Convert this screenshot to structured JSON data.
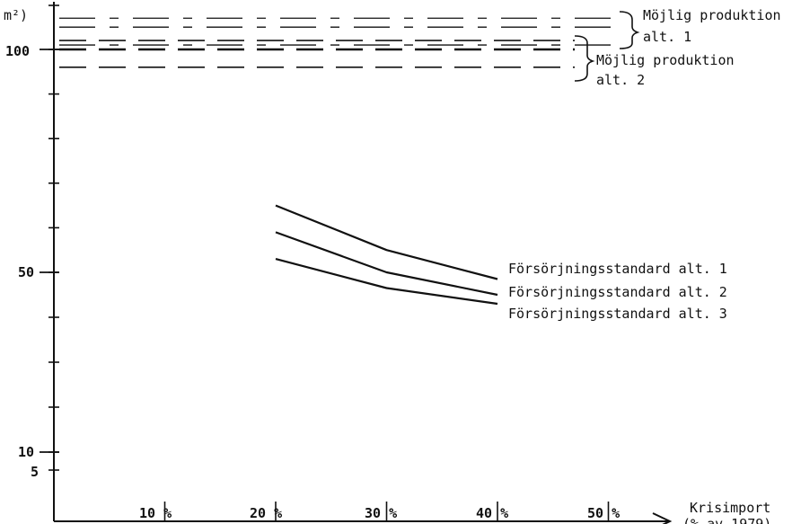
{
  "chart_data": {
    "type": "line",
    "y_axis_label": "m²)",
    "x_axis_label_line1": "Krisimport",
    "x_axis_label_line2": "(% av 1979)",
    "y_tick_labels": [
      {
        "value": 100,
        "label": "100"
      },
      {
        "value": 50,
        "label": "50"
      },
      {
        "value": 10,
        "label": "10"
      },
      {
        "value": 5,
        "label": "5"
      }
    ],
    "x_tick_labels": [
      {
        "value": 10,
        "label": "10 %"
      },
      {
        "value": 20,
        "label": "20 %"
      },
      {
        "value": 30,
        "label": "30 %"
      },
      {
        "value": 40,
        "label": "40 %"
      },
      {
        "value": 50,
        "label": "50 %"
      }
    ],
    "x_range": [
      0,
      55
    ],
    "y_range": [
      0,
      106
    ],
    "series": [
      {
        "name": "Försörjningsstandard alt. 1",
        "x": [
          20,
          30,
          40
        ],
        "y": [
          65,
          55,
          48.5
        ]
      },
      {
        "name": "Försörjningsstandard alt. 2",
        "x": [
          20,
          30,
          40
        ],
        "y": [
          59,
          50,
          45
        ]
      },
      {
        "name": "Försörjningsstandard alt. 3",
        "x": [
          20,
          30,
          40
        ],
        "y": [
          53,
          46.5,
          43
        ]
      }
    ],
    "reference_bands": [
      {
        "label_line1": "Möjlig produktion",
        "label_line2": "alt. 1",
        "y_min": 101,
        "y_max": 107
      },
      {
        "label_line1": "Möjlig produktion",
        "label_line2": "alt. 2",
        "y_min": 96,
        "y_max": 103
      }
    ]
  }
}
